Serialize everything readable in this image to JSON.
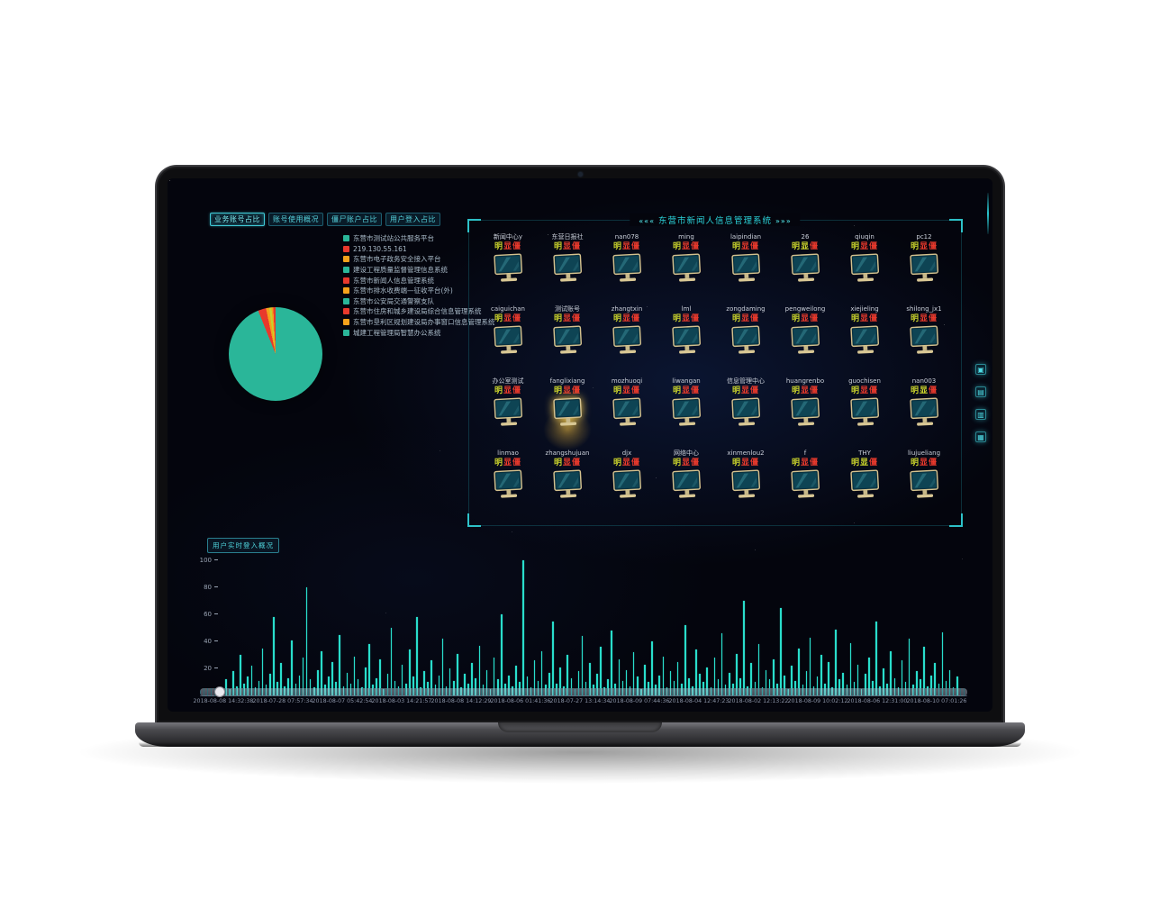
{
  "tabs": [
    {
      "label": "业务账号占比",
      "active": true
    },
    {
      "label": "账号使用概况",
      "active": false
    },
    {
      "label": "僵尸账户占比",
      "active": false
    },
    {
      "label": "用户登入占比",
      "active": false
    }
  ],
  "legend": {
    "items": [
      {
        "label": "东营市测试站公共服务平台",
        "color": "#2ab699"
      },
      {
        "label": "219.130.55.161",
        "color": "#e8392c"
      },
      {
        "label": "东营市电子政务安全接入平台",
        "color": "#f5a21b"
      },
      {
        "label": "建设工程质量监督管理信息系统",
        "color": "#2ab699"
      },
      {
        "label": "东营市新闻人信息管理系统",
        "color": "#e8392c"
      },
      {
        "label": "东营市排水收费端—征收平台(外)",
        "color": "#f5a21b"
      },
      {
        "label": "东营市公安局交通警察支队",
        "color": "#2ab699"
      },
      {
        "label": "东营市住房和城乡建设局综合信息管理系统",
        "color": "#e8392c"
      },
      {
        "label": "东营市垦利区规划建设局办事窗口信息管理系统",
        "color": "#f5a21b"
      },
      {
        "label": "城建工程管理局智慧办公系统",
        "color": "#2ab699"
      }
    ]
  },
  "users_panel": {
    "title_decor_left": "«««",
    "title_decor_right": "»»»",
    "title": "东营市新闻人信息管理系统",
    "badge_chars": [
      "明",
      "显",
      "僵"
    ],
    "badge_colors": {
      "y": "#c9d22c",
      "r": "#e8392c"
    },
    "highlight": {
      "row": 2,
      "col": 1
    },
    "rows": [
      [
        {
          "n": "新闻中心y",
          "p": "yrr"
        },
        {
          "n": "东营日报社",
          "p": "yrr"
        },
        {
          "n": "nan078",
          "p": "yrr"
        },
        {
          "n": "ming",
          "p": "yrr"
        },
        {
          "n": "laipindian",
          "p": "yrr"
        },
        {
          "n": "26",
          "p": "yyr"
        },
        {
          "n": "qiuqin",
          "p": "yrr"
        },
        {
          "n": "pc12",
          "p": "yrr"
        }
      ],
      [
        {
          "n": "caiguichan",
          "p": "yrr"
        },
        {
          "n": "测试账号",
          "p": "yrr"
        },
        {
          "n": "zhangtxin",
          "p": "yrr"
        },
        {
          "n": "lml",
          "p": "yrr"
        },
        {
          "n": "zongdaming",
          "p": "yrr"
        },
        {
          "n": "pengweilong",
          "p": "yrr"
        },
        {
          "n": "xiejieling",
          "p": "yrr"
        },
        {
          "n": "shilong_jx1",
          "p": "yrr"
        }
      ],
      [
        {
          "n": "办公室测试",
          "p": "yrr"
        },
        {
          "n": "fanglixiang",
          "p": "yrr"
        },
        {
          "n": "mozhuoqi",
          "p": "yrr"
        },
        {
          "n": "liwangan",
          "p": "yrr"
        },
        {
          "n": "信息管理中心",
          "p": "yrr"
        },
        {
          "n": "huangrenbo",
          "p": "yrr"
        },
        {
          "n": "guochisen",
          "p": "yrr"
        },
        {
          "n": "nan003",
          "p": "yyr"
        }
      ],
      [
        {
          "n": "linmao",
          "p": "yrr"
        },
        {
          "n": "zhangshujuan",
          "p": "yrr"
        },
        {
          "n": "djx",
          "p": "yrr"
        },
        {
          "n": "网络中心",
          "p": "yrr"
        },
        {
          "n": "xinmenlou2",
          "p": "yrr"
        },
        {
          "n": "f",
          "p": "yrr"
        },
        {
          "n": "THY",
          "p": "yyr"
        },
        {
          "n": "liujueliang",
          "p": "yrr"
        }
      ]
    ]
  },
  "side_icons": [
    {
      "name": "grid-widget-icon",
      "glyph": "▣"
    },
    {
      "name": "monitor-widget-icon",
      "glyph": "▤"
    },
    {
      "name": "user-widget-icon",
      "glyph": "▥"
    },
    {
      "name": "chart-widget-icon",
      "glyph": "▦"
    }
  ],
  "chart_data": [
    {
      "type": "pie",
      "title": "业务账号占比",
      "legend_position": "right",
      "slices": [
        {
          "color": "#2ab699",
          "value": 93.9
        },
        {
          "color": "#e8392c",
          "value": 2.8
        },
        {
          "color": "#f5a21b",
          "value": 1.1
        },
        {
          "color": "#c9d22c",
          "value": 0.8
        },
        {
          "color": "#f5a21b",
          "value": 0.6
        },
        {
          "color": "#e8392c",
          "value": 0.8
        }
      ]
    },
    {
      "type": "bar",
      "title": "用户实时登入概况",
      "ylim": [
        0,
        100
      ],
      "yticks": [
        100,
        80,
        60,
        40,
        20
      ],
      "bar_color": "#29ddcb",
      "grid": false,
      "x_labels": [
        "2018-08-08 14:32:38",
        "2018-07-28 07:57:34",
        "2018-08-07 05:42:54",
        "2018-08-03 14:21:57",
        "2018-08-08 14:12:29",
        "2018-08-06 01:41:36",
        "2018-07-27 13:14:34",
        "2018-08-09 07:44:36",
        "2018-08-04 12:47:23",
        "2018-08-02 12:13:22",
        "2018-08-09 10:02:12",
        "2018-08-06 12:31:00",
        "2018-08-10 07:01:26"
      ],
      "values": [
        12,
        5,
        18,
        7,
        30,
        9,
        14,
        22,
        6,
        11,
        35,
        8,
        16,
        58,
        10,
        24,
        7,
        13,
        41,
        9,
        15,
        28,
        80,
        12,
        6,
        19,
        33,
        8,
        14,
        25,
        10,
        45,
        7,
        17,
        9,
        29,
        12,
        6,
        21,
        38,
        8,
        13,
        27,
        5,
        16,
        50,
        11,
        7,
        23,
        9,
        34,
        14,
        58,
        6,
        18,
        10,
        26,
        8,
        15,
        42,
        7,
        20,
        11,
        31,
        6,
        16,
        9,
        24,
        13,
        37,
        8,
        19,
        5,
        28,
        12,
        60,
        9,
        15,
        7,
        22,
        10,
        100,
        14,
        6,
        26,
        11,
        33,
        8,
        17,
        55,
        9,
        21,
        7,
        30,
        13,
        5,
        18,
        44,
        10,
        24,
        8,
        16,
        36,
        6,
        12,
        48,
        9,
        27,
        11,
        19,
        7,
        32,
        14,
        5,
        23,
        10,
        40,
        8,
        15,
        29,
        6,
        18,
        11,
        25,
        9,
        52,
        13,
        7,
        34,
        16,
        10,
        21,
        6,
        28,
        12,
        46,
        8,
        17,
        9,
        31,
        13,
        70,
        7,
        24,
        10,
        38,
        6,
        19,
        12,
        27,
        9,
        65,
        15,
        5,
        22,
        11,
        35,
        8,
        18,
        43,
        7,
        14,
        30,
        9,
        25,
        6,
        49,
        12,
        17,
        8,
        39,
        10,
        23,
        5,
        16,
        28,
        11,
        55,
        7,
        20,
        9,
        33,
        13,
        6,
        26,
        10,
        42,
        8,
        18,
        12,
        36,
        7,
        15,
        24,
        9,
        47,
        11,
        19,
        6,
        14
      ]
    }
  ]
}
